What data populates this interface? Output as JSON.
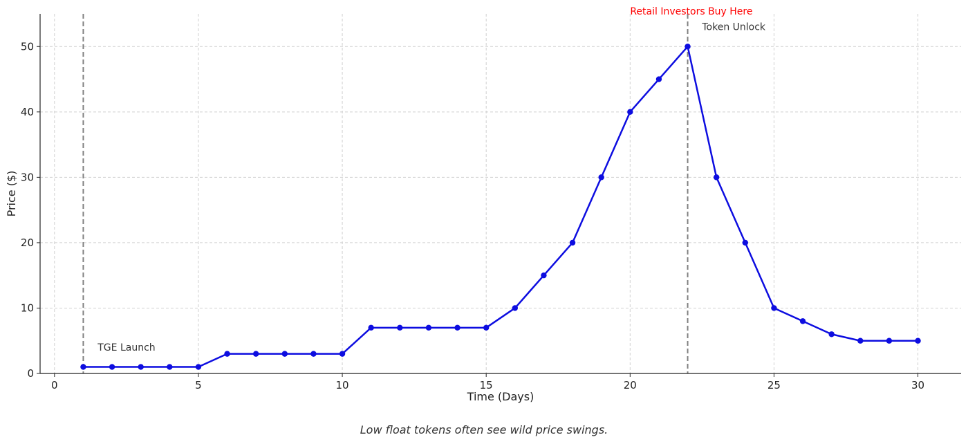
{
  "chart_data": {
    "type": "line",
    "xlabel": "Time (Days)",
    "ylabel": "Price ($)",
    "xlim": [
      -0.5,
      31.5
    ],
    "ylim": [
      0,
      55
    ],
    "xticks": [
      0,
      5,
      10,
      15,
      20,
      25,
      30
    ],
    "yticks": [
      0,
      10,
      20,
      30,
      40,
      50
    ],
    "grid": true,
    "series": [
      {
        "x": [
          1,
          2,
          3,
          4,
          5,
          6,
          7,
          8,
          9,
          10,
          11,
          12,
          13,
          14,
          15,
          16,
          17,
          18,
          19,
          20,
          21,
          22,
          23,
          24,
          25,
          26,
          27,
          28,
          29,
          30
        ],
        "y": [
          1,
          1,
          1,
          1,
          1,
          3,
          3,
          3,
          3,
          3,
          7,
          7,
          7,
          7,
          7,
          10,
          15,
          20,
          30,
          40,
          45,
          50,
          30,
          20,
          10,
          8,
          6,
          5,
          5,
          5
        ],
        "color": "#0d0de0"
      }
    ],
    "vlines": [
      {
        "x": 1,
        "label": "TGE Launch",
        "label_x": 1.5,
        "label_y": 3.5,
        "color": "#808080"
      },
      {
        "x": 22,
        "label": "Token Unlock",
        "label_x": 22.5,
        "label_y": 52.5,
        "color": "#808080"
      }
    ],
    "annotations": [
      {
        "text": "Retail Investors Buy Here",
        "x": 20,
        "y": 55,
        "color": "#ff0000"
      }
    ]
  },
  "caption": "Low float tokens often see wild price swings."
}
